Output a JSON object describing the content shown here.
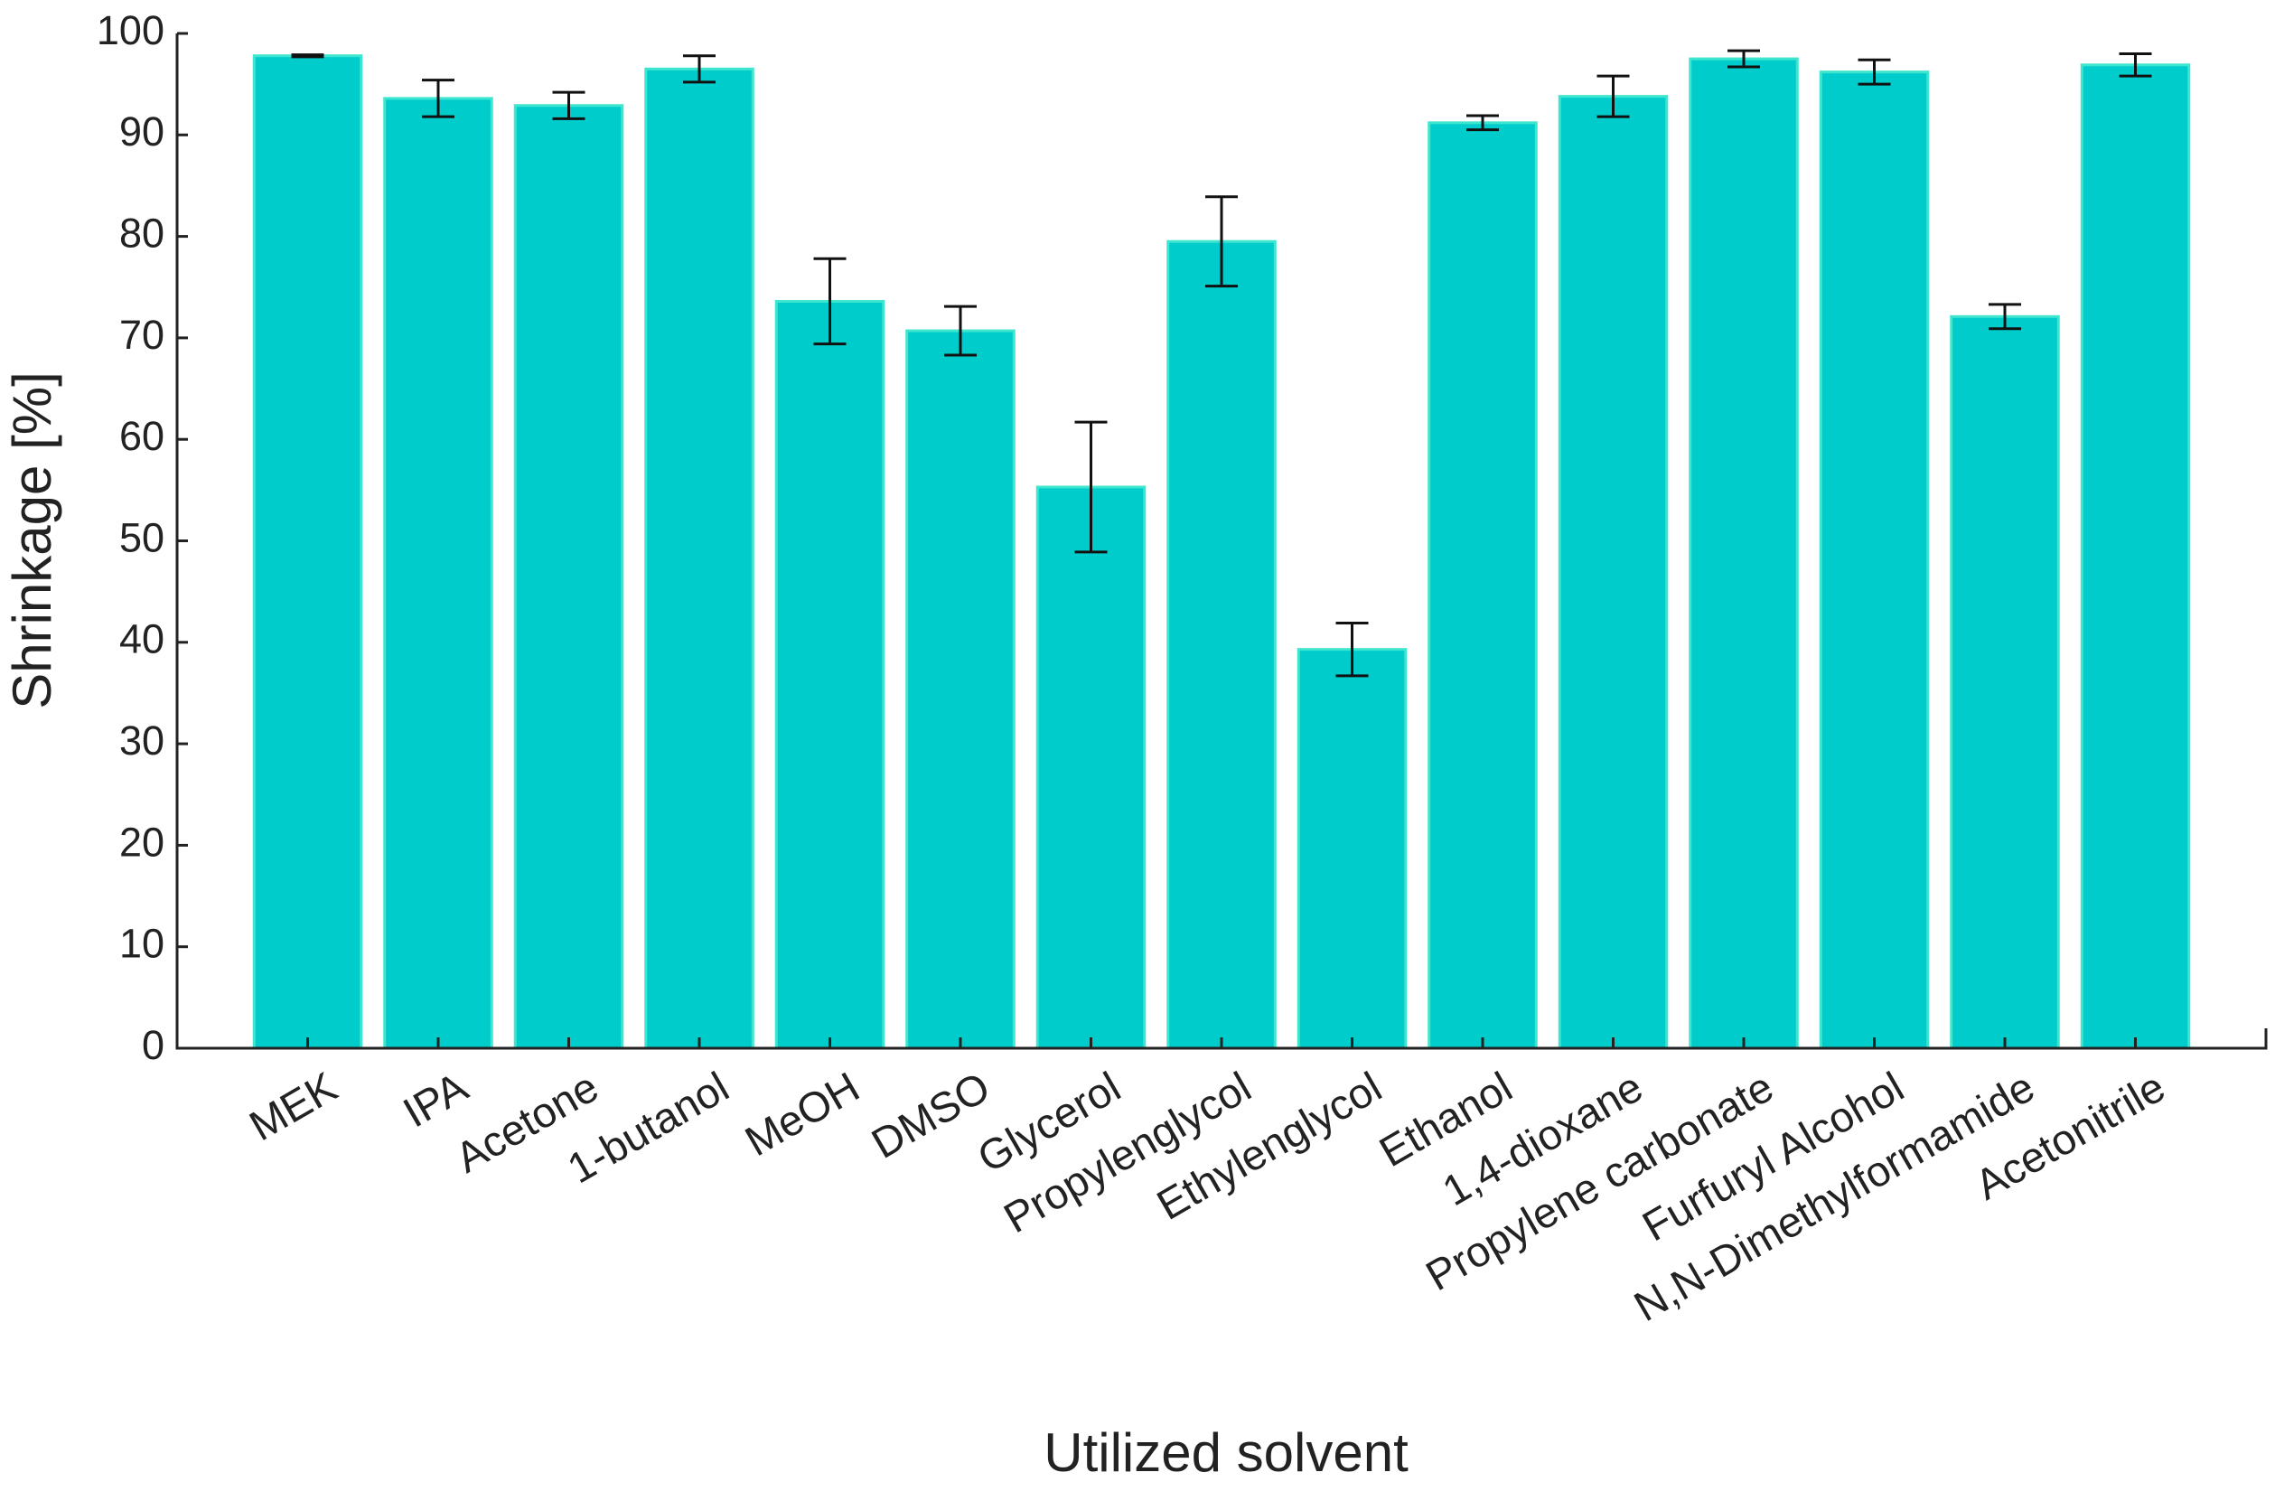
{
  "chart_data": {
    "type": "bar",
    "x_label": "Utilized solvent",
    "y_label": "Shrinkage [%]",
    "categories": [
      "MEK",
      "IPA",
      "Acetone",
      "1-butanol",
      "MeOH",
      "DMSO",
      "Glycerol",
      "Propylenglycol",
      "Ethylenglycol",
      "Ethanol",
      "1,4-dioxane",
      "Propylene carbonate",
      "Furfuryl Alcohol",
      "N,N-Dimethylformamide",
      "Acetonitrile"
    ],
    "values": [
      97.8,
      93.6,
      92.9,
      96.5,
      73.6,
      70.7,
      55.3,
      79.5,
      39.3,
      91.2,
      93.8,
      97.5,
      96.2,
      72.1,
      96.9
    ],
    "errors": [
      0.1,
      1.8,
      1.3,
      1.3,
      4.2,
      2.4,
      6.4,
      4.4,
      2.6,
      0.7,
      2.0,
      0.8,
      1.2,
      1.2,
      1.1
    ],
    "color": "#00cccc",
    "ylim": [
      0,
      100
    ],
    "yticks": [
      0,
      10,
      20,
      30,
      40,
      50,
      60,
      70,
      80,
      90,
      100
    ],
    "grid": false
  }
}
